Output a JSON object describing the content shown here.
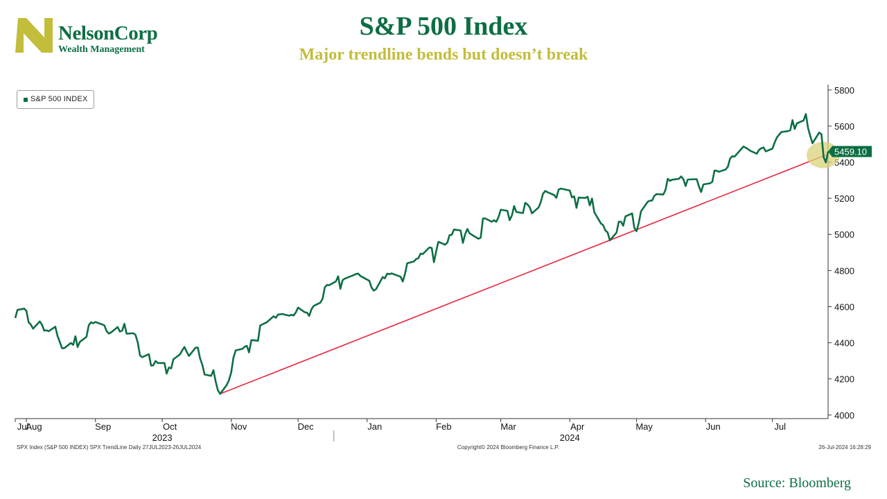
{
  "header": {
    "title": "S&P 500 Index",
    "subtitle": "Major trendline bends but doesn’t break"
  },
  "logo": {
    "name": "NelsonCorp",
    "tagline": "Wealth Management",
    "colors": {
      "green": "#0d6e43",
      "gold": "#c2bd3a"
    }
  },
  "footer": {
    "left": "SPX Index (S&P 500 INDEX) SPX TrendLine  Daily 27JUL2023-26JUL2024",
    "center": "Copyright© 2024 Bloomberg Finance L.P.",
    "right": "26-Jul-2024 16:28:29",
    "source": "Source: Bloomberg"
  },
  "chart_data": {
    "type": "line",
    "legend": {
      "label": "S&P 500 INDEX",
      "placement": "top-left"
    },
    "last_value_label": "5459.10",
    "colors": {
      "series": "#0d6e43",
      "trendline": "#e8243c",
      "highlight": "#d9d27a",
      "axis": "#333333"
    },
    "ylim": [
      3980,
      5830
    ],
    "y_ticks": [
      4000,
      4200,
      4400,
      4600,
      4800,
      5000,
      5200,
      5400,
      5600,
      5800
    ],
    "x_range": [
      "2023-07-27",
      "2024-07-26"
    ],
    "month_ticks": [
      {
        "label": "Jul",
        "date": "2023-07-27"
      },
      {
        "label": "Aug",
        "date": "2023-08-01"
      },
      {
        "label": "Sep",
        "date": "2023-09-01"
      },
      {
        "label": "Oct",
        "date": "2023-10-01"
      },
      {
        "label": "Nov",
        "date": "2023-11-01"
      },
      {
        "label": "Dec",
        "date": "2023-12-01"
      },
      {
        "label": "Jan",
        "date": "2024-01-01"
      },
      {
        "label": "Feb",
        "date": "2024-02-01"
      },
      {
        "label": "Mar",
        "date": "2024-03-01"
      },
      {
        "label": "Apr",
        "date": "2024-04-01"
      },
      {
        "label": "May",
        "date": "2024-05-01"
      },
      {
        "label": "Jun",
        "date": "2024-06-01"
      },
      {
        "label": "Jul",
        "date": "2024-07-01"
      }
    ],
    "year_labels": [
      {
        "label": "2023",
        "date": "2023-10-01"
      },
      {
        "label": "2024",
        "date": "2024-04-01"
      }
    ],
    "series": [
      {
        "name": "S&P 500 INDEX",
        "points": [
          [
            "2023-07-27",
            4537
          ],
          [
            "2023-07-28",
            4582
          ],
          [
            "2023-07-31",
            4589
          ],
          [
            "2023-08-01",
            4577
          ],
          [
            "2023-08-02",
            4513
          ],
          [
            "2023-08-03",
            4501
          ],
          [
            "2023-08-04",
            4478
          ],
          [
            "2023-08-07",
            4518
          ],
          [
            "2023-08-08",
            4500
          ],
          [
            "2023-08-09",
            4467
          ],
          [
            "2023-08-10",
            4469
          ],
          [
            "2023-08-11",
            4464
          ],
          [
            "2023-08-14",
            4489
          ],
          [
            "2023-08-15",
            4437
          ],
          [
            "2023-08-16",
            4404
          ],
          [
            "2023-08-17",
            4370
          ],
          [
            "2023-08-18",
            4370
          ],
          [
            "2023-08-21",
            4399
          ],
          [
            "2023-08-22",
            4388
          ],
          [
            "2023-08-23",
            4436
          ],
          [
            "2023-08-24",
            4376
          ],
          [
            "2023-08-25",
            4405
          ],
          [
            "2023-08-28",
            4433
          ],
          [
            "2023-08-29",
            4497
          ],
          [
            "2023-08-30",
            4514
          ],
          [
            "2023-08-31",
            4508
          ],
          [
            "2023-09-01",
            4515
          ],
          [
            "2023-09-05",
            4497
          ],
          [
            "2023-09-06",
            4465
          ],
          [
            "2023-09-07",
            4451
          ],
          [
            "2023-09-08",
            4457
          ],
          [
            "2023-09-11",
            4487
          ],
          [
            "2023-09-12",
            4462
          ],
          [
            "2023-09-13",
            4467
          ],
          [
            "2023-09-14",
            4505
          ],
          [
            "2023-09-15",
            4450
          ],
          [
            "2023-09-18",
            4453
          ],
          [
            "2023-09-19",
            4444
          ],
          [
            "2023-09-20",
            4402
          ],
          [
            "2023-09-21",
            4330
          ],
          [
            "2023-09-22",
            4320
          ],
          [
            "2023-09-25",
            4337
          ],
          [
            "2023-09-26",
            4274
          ],
          [
            "2023-09-27",
            4275
          ],
          [
            "2023-09-28",
            4299
          ],
          [
            "2023-09-29",
            4288
          ],
          [
            "2023-10-02",
            4288
          ],
          [
            "2023-10-03",
            4229
          ],
          [
            "2023-10-04",
            4263
          ],
          [
            "2023-10-05",
            4258
          ],
          [
            "2023-10-06",
            4308
          ],
          [
            "2023-10-09",
            4336
          ],
          [
            "2023-10-10",
            4358
          ],
          [
            "2023-10-11",
            4377
          ],
          [
            "2023-10-12",
            4349
          ],
          [
            "2023-10-13",
            4327
          ],
          [
            "2023-10-16",
            4373
          ],
          [
            "2023-10-17",
            4373
          ],
          [
            "2023-10-18",
            4314
          ],
          [
            "2023-10-19",
            4278
          ],
          [
            "2023-10-20",
            4224
          ],
          [
            "2023-10-23",
            4217
          ],
          [
            "2023-10-24",
            4248
          ],
          [
            "2023-10-25",
            4186
          ],
          [
            "2023-10-26",
            4137
          ],
          [
            "2023-10-27",
            4117
          ],
          [
            "2023-10-30",
            4167
          ],
          [
            "2023-10-31",
            4193
          ],
          [
            "2023-11-01",
            4237
          ],
          [
            "2023-11-02",
            4318
          ],
          [
            "2023-11-03",
            4358
          ],
          [
            "2023-11-06",
            4366
          ],
          [
            "2023-11-07",
            4378
          ],
          [
            "2023-11-08",
            4383
          ],
          [
            "2023-11-09",
            4347
          ],
          [
            "2023-11-10",
            4415
          ],
          [
            "2023-11-13",
            4411
          ],
          [
            "2023-11-14",
            4496
          ],
          [
            "2023-11-15",
            4502
          ],
          [
            "2023-11-16",
            4508
          ],
          [
            "2023-11-17",
            4514
          ],
          [
            "2023-11-20",
            4547
          ],
          [
            "2023-11-21",
            4538
          ],
          [
            "2023-11-22",
            4556
          ],
          [
            "2023-11-24",
            4559
          ],
          [
            "2023-11-27",
            4550
          ],
          [
            "2023-11-28",
            4555
          ],
          [
            "2023-11-29",
            4551
          ],
          [
            "2023-11-30",
            4568
          ],
          [
            "2023-12-01",
            4595
          ],
          [
            "2023-12-04",
            4569
          ],
          [
            "2023-12-05",
            4567
          ],
          [
            "2023-12-06",
            4549
          ],
          [
            "2023-12-07",
            4585
          ],
          [
            "2023-12-08",
            4604
          ],
          [
            "2023-12-11",
            4622
          ],
          [
            "2023-12-12",
            4644
          ],
          [
            "2023-12-13",
            4707
          ],
          [
            "2023-12-14",
            4720
          ],
          [
            "2023-12-15",
            4719
          ],
          [
            "2023-12-18",
            4740
          ],
          [
            "2023-12-19",
            4768
          ],
          [
            "2023-12-20",
            4699
          ],
          [
            "2023-12-21",
            4747
          ],
          [
            "2023-12-22",
            4755
          ],
          [
            "2023-12-26",
            4775
          ],
          [
            "2023-12-27",
            4781
          ],
          [
            "2023-12-28",
            4783
          ],
          [
            "2023-12-29",
            4770
          ],
          [
            "2024-01-02",
            4743
          ],
          [
            "2024-01-03",
            4705
          ],
          [
            "2024-01-04",
            4689
          ],
          [
            "2024-01-05",
            4697
          ],
          [
            "2024-01-08",
            4764
          ],
          [
            "2024-01-09",
            4757
          ],
          [
            "2024-01-10",
            4783
          ],
          [
            "2024-01-11",
            4780
          ],
          [
            "2024-01-12",
            4784
          ],
          [
            "2024-01-16",
            4766
          ],
          [
            "2024-01-17",
            4739
          ],
          [
            "2024-01-18",
            4781
          ],
          [
            "2024-01-19",
            4840
          ],
          [
            "2024-01-22",
            4850
          ],
          [
            "2024-01-23",
            4864
          ],
          [
            "2024-01-24",
            4868
          ],
          [
            "2024-01-25",
            4894
          ],
          [
            "2024-01-26",
            4891
          ],
          [
            "2024-01-29",
            4928
          ],
          [
            "2024-01-30",
            4925
          ],
          [
            "2024-01-31",
            4846
          ],
          [
            "2024-02-01",
            4906
          ],
          [
            "2024-02-02",
            4959
          ],
          [
            "2024-02-05",
            4943
          ],
          [
            "2024-02-06",
            4954
          ],
          [
            "2024-02-07",
            4996
          ],
          [
            "2024-02-08",
            4998
          ],
          [
            "2024-02-09",
            5027
          ],
          [
            "2024-02-12",
            5022
          ],
          [
            "2024-02-13",
            4953
          ],
          [
            "2024-02-14",
            5001
          ],
          [
            "2024-02-15",
            5030
          ],
          [
            "2024-02-16",
            5006
          ],
          [
            "2024-02-20",
            4976
          ],
          [
            "2024-02-21",
            4982
          ],
          [
            "2024-02-22",
            5088
          ],
          [
            "2024-02-23",
            5089
          ],
          [
            "2024-02-26",
            5070
          ],
          [
            "2024-02-27",
            5079
          ],
          [
            "2024-02-28",
            5070
          ],
          [
            "2024-02-29",
            5096
          ],
          [
            "2024-03-01",
            5137
          ],
          [
            "2024-03-04",
            5131
          ],
          [
            "2024-03-05",
            5079
          ],
          [
            "2024-03-06",
            5105
          ],
          [
            "2024-03-07",
            5157
          ],
          [
            "2024-03-08",
            5124
          ],
          [
            "2024-03-11",
            5118
          ],
          [
            "2024-03-12",
            5175
          ],
          [
            "2024-03-13",
            5166
          ],
          [
            "2024-03-14",
            5151
          ],
          [
            "2024-03-15",
            5117
          ],
          [
            "2024-03-18",
            5149
          ],
          [
            "2024-03-19",
            5179
          ],
          [
            "2024-03-20",
            5225
          ],
          [
            "2024-03-21",
            5241
          ],
          [
            "2024-03-22",
            5234
          ],
          [
            "2024-03-25",
            5218
          ],
          [
            "2024-03-26",
            5203
          ],
          [
            "2024-03-27",
            5248
          ],
          [
            "2024-03-28",
            5254
          ],
          [
            "2024-04-01",
            5243
          ],
          [
            "2024-04-02",
            5205
          ],
          [
            "2024-04-03",
            5211
          ],
          [
            "2024-04-04",
            5147
          ],
          [
            "2024-04-05",
            5204
          ],
          [
            "2024-04-08",
            5202
          ],
          [
            "2024-04-09",
            5209
          ],
          [
            "2024-04-10",
            5161
          ],
          [
            "2024-04-11",
            5199
          ],
          [
            "2024-04-12",
            5123
          ],
          [
            "2024-04-15",
            5061
          ],
          [
            "2024-04-16",
            5051
          ],
          [
            "2024-04-17",
            5022
          ],
          [
            "2024-04-18",
            5011
          ],
          [
            "2024-04-19",
            4967
          ],
          [
            "2024-04-22",
            5010
          ],
          [
            "2024-04-23",
            5070
          ],
          [
            "2024-04-24",
            5071
          ],
          [
            "2024-04-25",
            5048
          ],
          [
            "2024-04-26",
            5100
          ],
          [
            "2024-04-29",
            5116
          ],
          [
            "2024-04-30",
            5036
          ],
          [
            "2024-05-01",
            5018
          ],
          [
            "2024-05-02",
            5064
          ],
          [
            "2024-05-03",
            5128
          ],
          [
            "2024-05-06",
            5181
          ],
          [
            "2024-05-07",
            5187
          ],
          [
            "2024-05-08",
            5188
          ],
          [
            "2024-05-09",
            5214
          ],
          [
            "2024-05-10",
            5223
          ],
          [
            "2024-05-13",
            5221
          ],
          [
            "2024-05-14",
            5247
          ],
          [
            "2024-05-15",
            5308
          ],
          [
            "2024-05-16",
            5297
          ],
          [
            "2024-05-17",
            5303
          ],
          [
            "2024-05-20",
            5308
          ],
          [
            "2024-05-21",
            5321
          ],
          [
            "2024-05-22",
            5307
          ],
          [
            "2024-05-23",
            5268
          ],
          [
            "2024-05-24",
            5304
          ],
          [
            "2024-05-28",
            5306
          ],
          [
            "2024-05-29",
            5266
          ],
          [
            "2024-05-30",
            5235
          ],
          [
            "2024-05-31",
            5277
          ],
          [
            "2024-06-03",
            5283
          ],
          [
            "2024-06-04",
            5291
          ],
          [
            "2024-06-05",
            5354
          ],
          [
            "2024-06-06",
            5352
          ],
          [
            "2024-06-07",
            5347
          ],
          [
            "2024-06-10",
            5360
          ],
          [
            "2024-06-11",
            5375
          ],
          [
            "2024-06-12",
            5421
          ],
          [
            "2024-06-13",
            5433
          ],
          [
            "2024-06-14",
            5431
          ],
          [
            "2024-06-17",
            5473
          ],
          [
            "2024-06-18",
            5487
          ],
          [
            "2024-06-20",
            5473
          ],
          [
            "2024-06-21",
            5464
          ],
          [
            "2024-06-24",
            5447
          ],
          [
            "2024-06-25",
            5469
          ],
          [
            "2024-06-26",
            5477
          ],
          [
            "2024-06-27",
            5482
          ],
          [
            "2024-06-28",
            5460
          ],
          [
            "2024-07-01",
            5475
          ],
          [
            "2024-07-02",
            5509
          ],
          [
            "2024-07-03",
            5537
          ],
          [
            "2024-07-05",
            5567
          ],
          [
            "2024-07-08",
            5572
          ],
          [
            "2024-07-09",
            5577
          ],
          [
            "2024-07-10",
            5633
          ],
          [
            "2024-07-11",
            5584
          ],
          [
            "2024-07-12",
            5615
          ],
          [
            "2024-07-15",
            5631
          ],
          [
            "2024-07-16",
            5667
          ],
          [
            "2024-07-17",
            5589
          ],
          [
            "2024-07-18",
            5545
          ],
          [
            "2024-07-19",
            5505
          ],
          [
            "2024-07-22",
            5564
          ],
          [
            "2024-07-23",
            5555
          ],
          [
            "2024-07-24",
            5427
          ],
          [
            "2024-07-25",
            5399
          ],
          [
            "2024-07-26",
            5459.1
          ]
        ]
      }
    ],
    "trendline": {
      "start": [
        "2023-10-27",
        4117
      ],
      "end": [
        "2024-07-25",
        5440
      ]
    }
  }
}
